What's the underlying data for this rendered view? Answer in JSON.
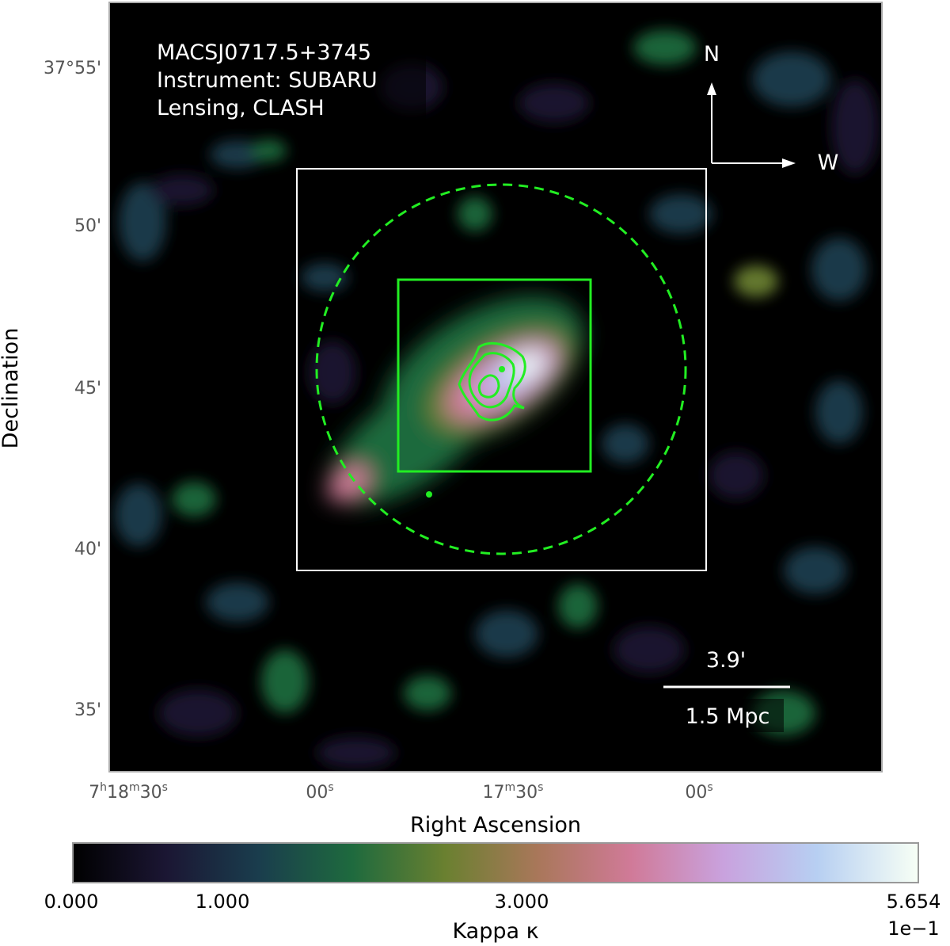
{
  "map": {
    "info_lines": [
      "MACSJ0717.5+3745",
      "Instrument: SUBARU",
      "Lensing, CLASH"
    ],
    "compass": {
      "north": "N",
      "west": "W"
    },
    "scale_bar": {
      "angular": "3.9'",
      "physical": "1.5 Mpc"
    },
    "x_axis": {
      "label": "Right Ascension",
      "ticks": [
        {
          "h": "7",
          "m": "18",
          "s": "30"
        },
        {
          "h": "",
          "m": "",
          "s": "00"
        },
        {
          "h": "",
          "m": "17",
          "s": "30"
        },
        {
          "h": "",
          "m": "",
          "s": "00"
        }
      ]
    },
    "y_axis": {
      "label": "Declination",
      "ticks": [
        "37°55'",
        "50'",
        "45'",
        "40'",
        "35'"
      ]
    },
    "overlay_colors": {
      "regions": "#22ee22",
      "frame": "#ffffff"
    }
  },
  "colorbar": {
    "label": "Kappa κ",
    "ticks": [
      "0.000",
      "1.000",
      "3.000",
      "5.654"
    ],
    "exponent": "1e−1",
    "colormap": [
      "#000000",
      "#1b1633",
      "#1a3d4d",
      "#1e6a3e",
      "#6a8030",
      "#a9775a",
      "#d07a98",
      "#c9a2de",
      "#b7cff2",
      "#f7fff5"
    ]
  }
}
